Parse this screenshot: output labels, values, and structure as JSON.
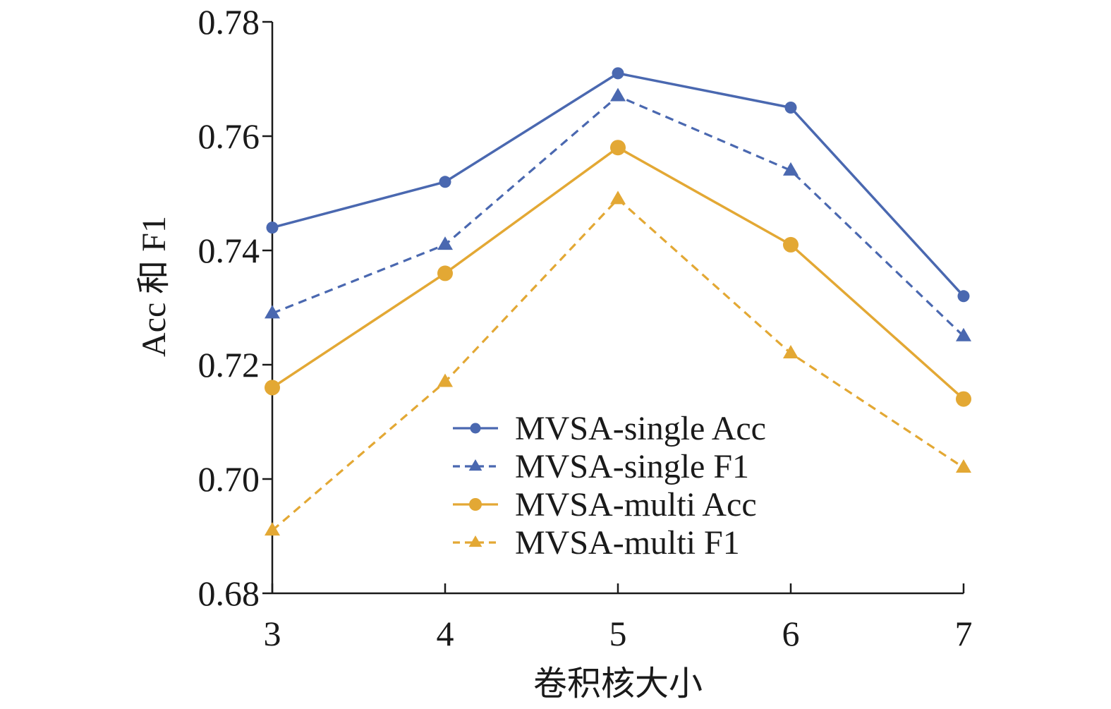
{
  "chart_data": {
    "type": "line",
    "title": "",
    "xlabel": "卷积核大小",
    "ylabel": "Acc 和 F1",
    "x": [
      3,
      4,
      5,
      6,
      7
    ],
    "x_tick_labels": [
      "3",
      "4",
      "5",
      "6",
      "7"
    ],
    "ylim": [
      0.68,
      0.78
    ],
    "y_ticks": [
      0.68,
      0.7,
      0.72,
      0.74,
      0.76,
      0.78
    ],
    "y_tick_labels": [
      "0.68",
      "0.70",
      "0.72",
      "0.74",
      "0.76",
      "0.78"
    ],
    "grid": false,
    "legend_position": "bottom-center",
    "series": [
      {
        "name": "MVSA-single Acc",
        "values": [
          0.744,
          0.752,
          0.771,
          0.765,
          0.732
        ],
        "color": "#4a68b0",
        "dash": "solid",
        "marker": "circle"
      },
      {
        "name": "MVSA-single F1",
        "values": [
          0.729,
          0.741,
          0.767,
          0.754,
          0.725
        ],
        "color": "#4a68b0",
        "dash": "dashed",
        "marker": "triangle"
      },
      {
        "name": "MVSA-multi Acc",
        "values": [
          0.716,
          0.736,
          0.758,
          0.741,
          0.714
        ],
        "color": "#e3a834",
        "dash": "solid",
        "marker": "circle"
      },
      {
        "name": "MVSA-multi F1",
        "values": [
          0.691,
          0.717,
          0.749,
          0.722,
          0.702
        ],
        "color": "#e3a834",
        "dash": "dashed",
        "marker": "triangle"
      }
    ]
  }
}
